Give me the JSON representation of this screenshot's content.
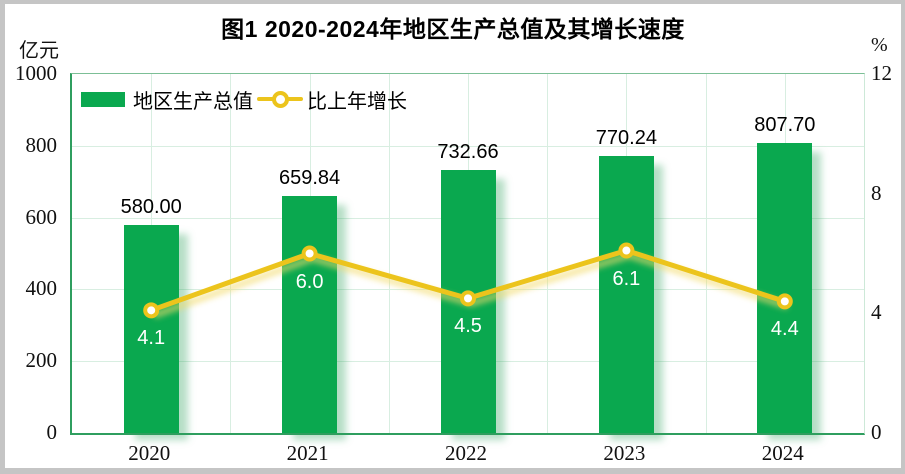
{
  "chart_data": {
    "type": "bar+line",
    "title": "图1 2020-2024年地区生产总值及其增长速度",
    "categories": [
      "2020",
      "2021",
      "2022",
      "2023",
      "2024"
    ],
    "series": [
      {
        "name": "地区生产总值",
        "type": "bar",
        "axis": "left",
        "unit": "亿元",
        "values": [
          580.0,
          659.84,
          732.66,
          770.24,
          807.7
        ],
        "labels": [
          "580.00",
          "659.84",
          "732.66",
          "770.24",
          "807.70"
        ],
        "color": "#0aa84f"
      },
      {
        "name": "比上年增长",
        "type": "line",
        "axis": "right",
        "unit": "%",
        "values": [
          4.1,
          6.0,
          4.5,
          6.1,
          4.4
        ],
        "labels": [
          "4.1",
          "6.0",
          "4.5",
          "6.1",
          "4.4"
        ],
        "color": "#ecc41c"
      }
    ],
    "left_axis": {
      "label": "亿元",
      "min": 0,
      "max": 1000,
      "ticks": [
        0,
        200,
        400,
        600,
        800,
        1000
      ]
    },
    "right_axis": {
      "label": "%",
      "min": 0,
      "max": 12,
      "ticks": [
        0,
        4,
        8,
        12
      ]
    },
    "grid": {
      "h_intervals": 5,
      "v_intervals": 10,
      "color": "#d8eee1"
    },
    "legend_position": "top-left",
    "colors": {
      "bar": "#0aa84f",
      "line": "#ecc41c",
      "marker_fill": "#ffffff",
      "axis_border": "#2f9e5f",
      "grid": "#d8eee1",
      "frame_border": "#c5c5c5",
      "bar_value_text": "#000000",
      "growth_value_text": "#ffffff"
    }
  }
}
